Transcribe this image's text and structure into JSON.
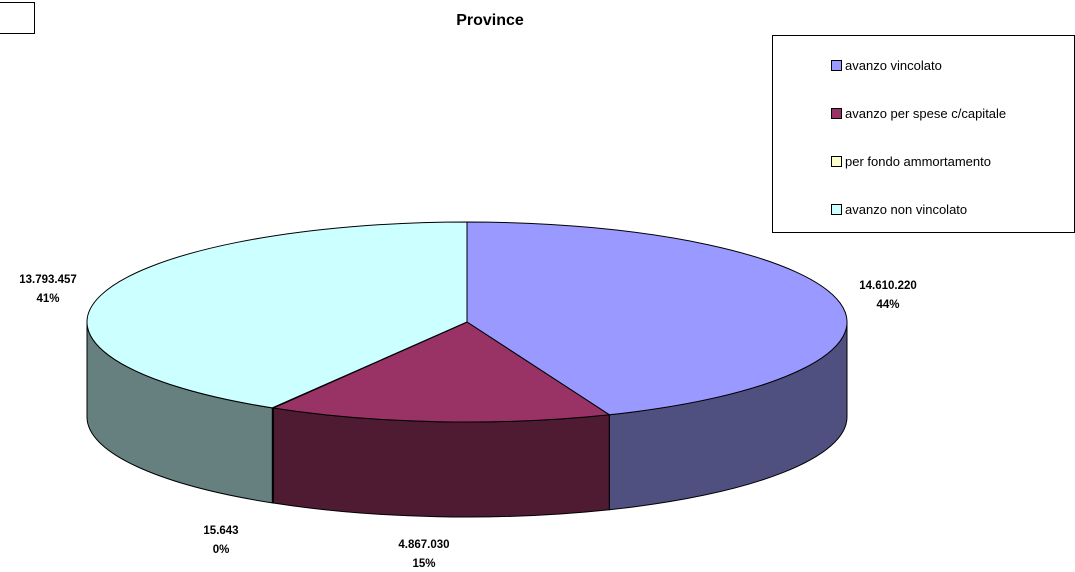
{
  "chart_data": {
    "type": "pie",
    "title": "Province",
    "slices": [
      {
        "name": "avanzo vincolato",
        "value": 14610220,
        "value_label": "14.610.220",
        "pct_label": "44%",
        "color": "#9999FF",
        "side_color": "#4F4F80"
      },
      {
        "name": "avanzo per spese c/capitale",
        "value": 4867030,
        "value_label": "4.867.030",
        "pct_label": "15%",
        "color": "#993366",
        "side_color": "#4F1B33"
      },
      {
        "name": "per fondo ammortamento",
        "value": 15643,
        "value_label": "15.643",
        "pct_label": "0%",
        "color": "#FFFFCC",
        "side_color": "#808066"
      },
      {
        "name": "avanzo non vincolato",
        "value": 13793457,
        "value_label": "13.793.457",
        "pct_label": "41%",
        "color": "#CCFFFF",
        "side_color": "#668080"
      }
    ],
    "legend_position": "top-right"
  }
}
